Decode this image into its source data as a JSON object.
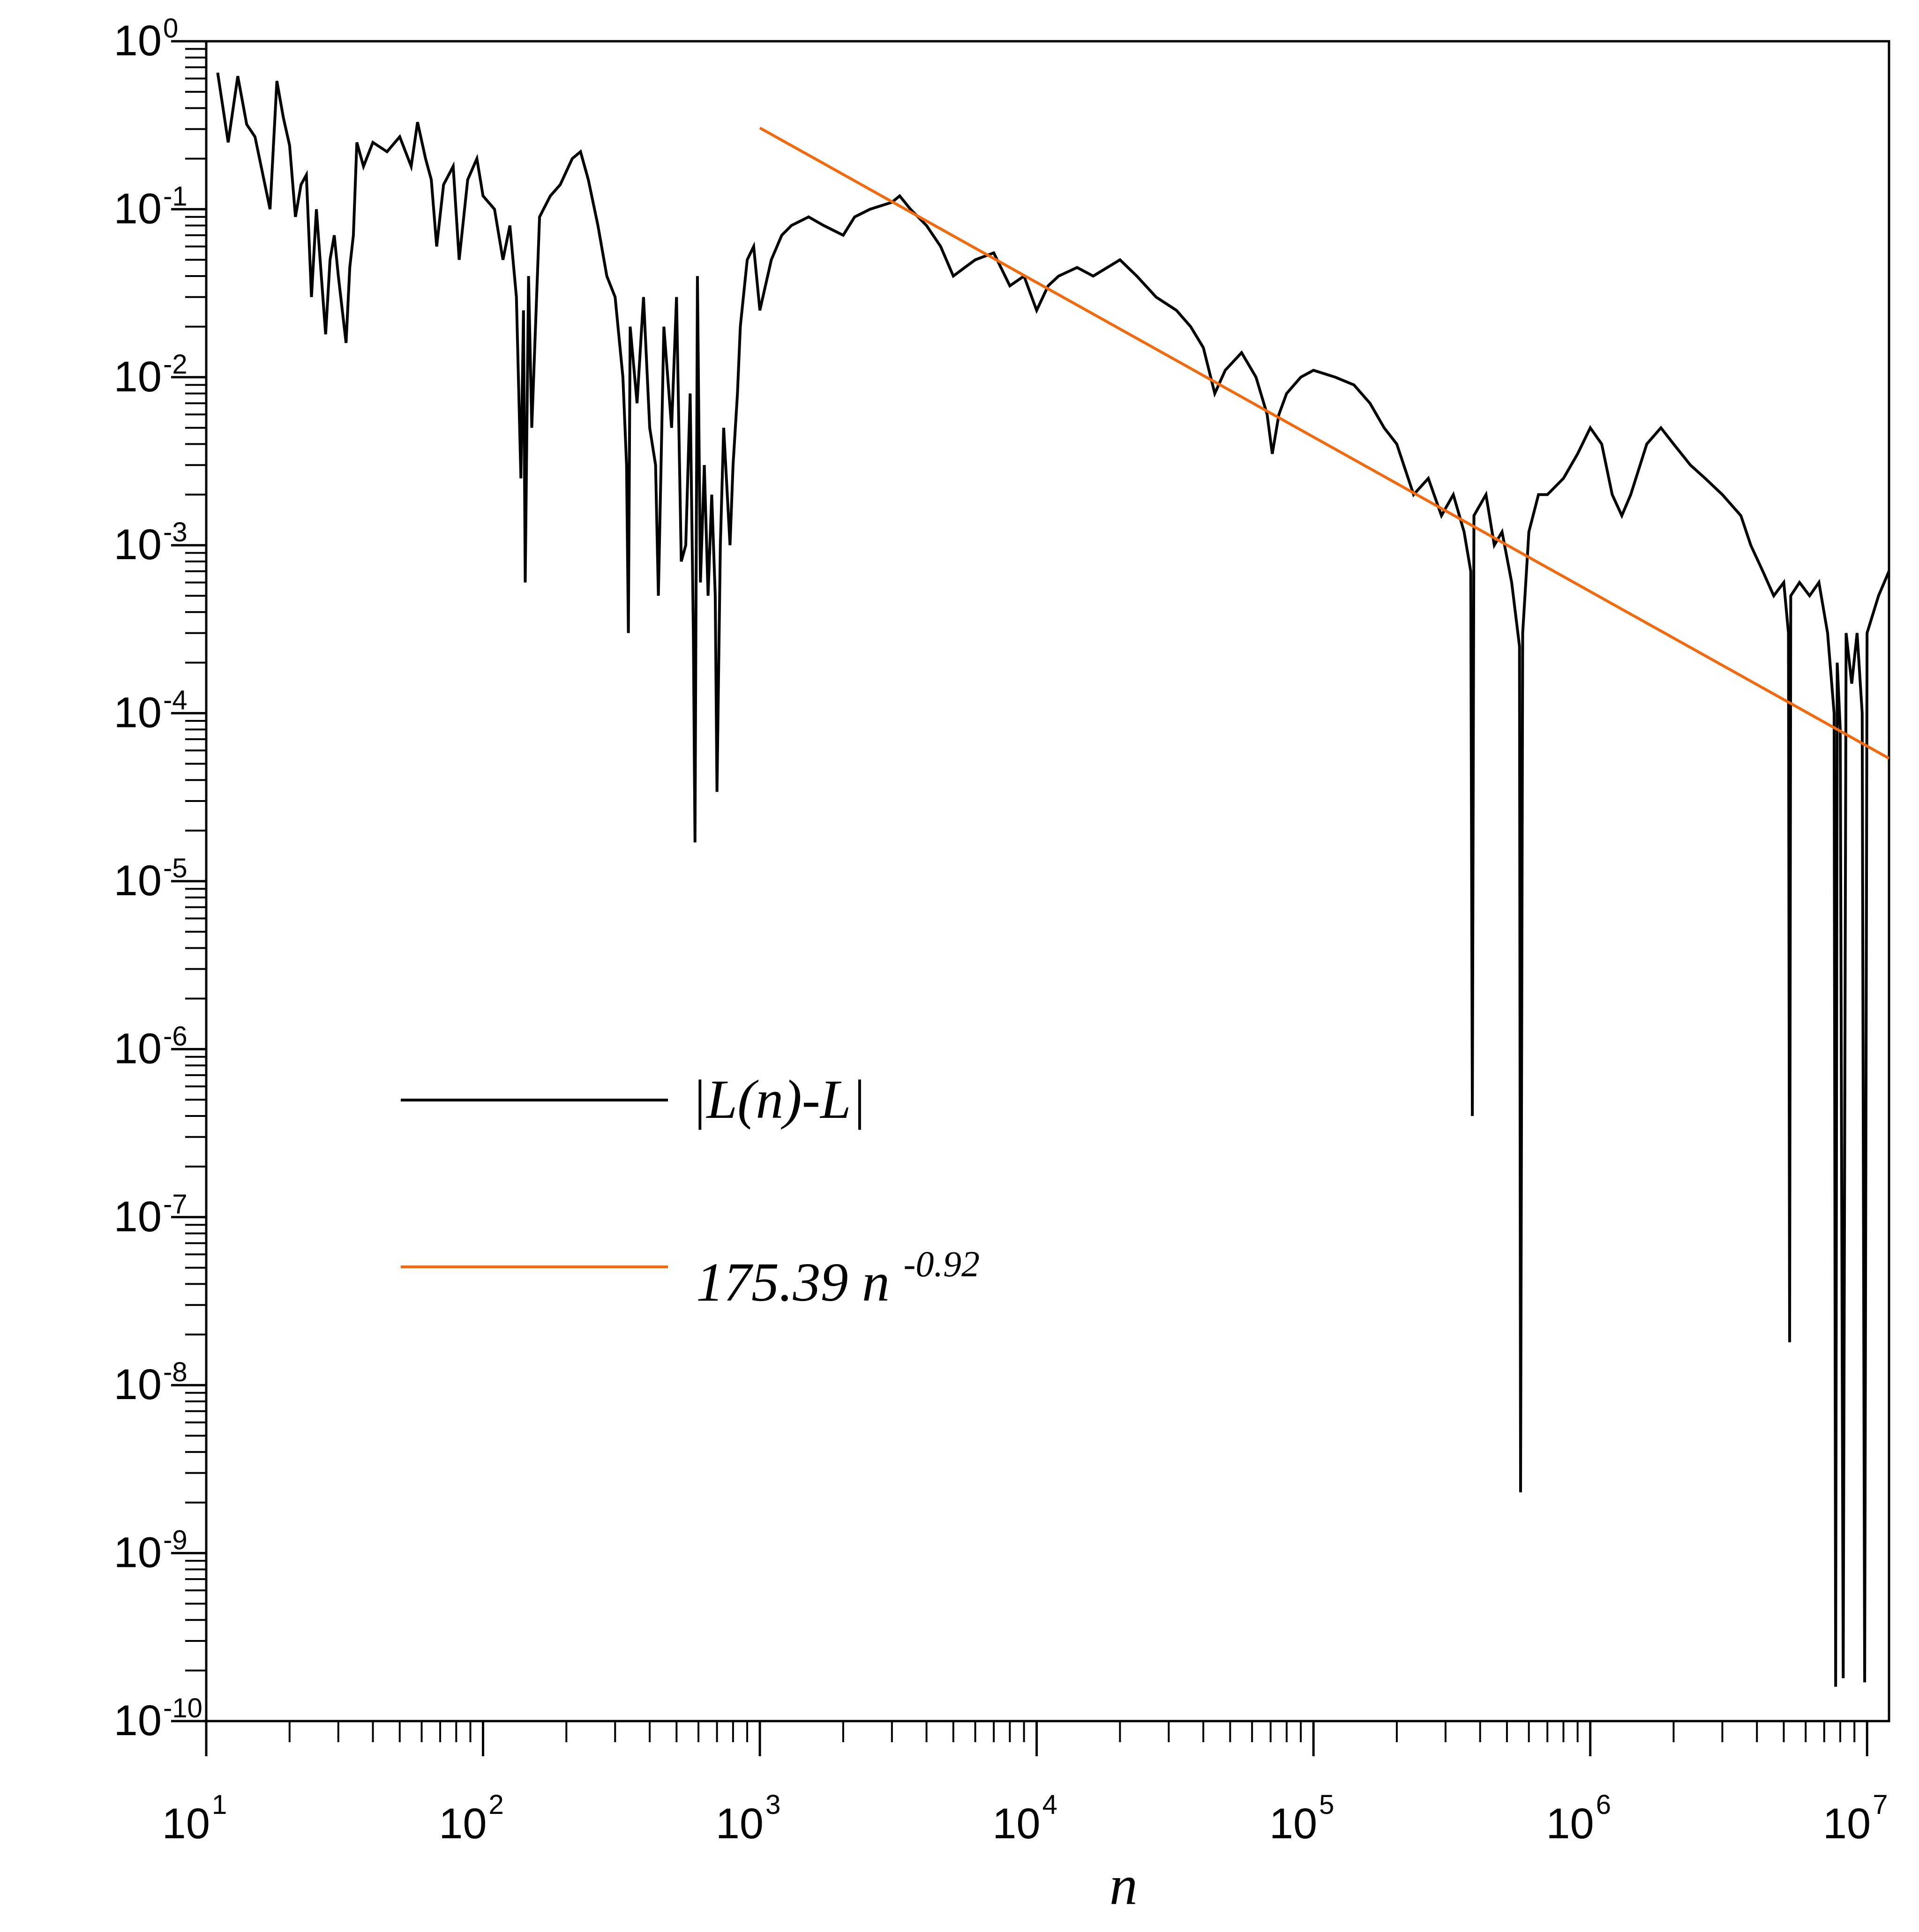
{
  "chart_data": {
    "type": "line",
    "title": "",
    "xlabel": "n",
    "ylabel": "",
    "x_scale": "log",
    "y_scale": "log",
    "xlim": [
      10,
      12000000
    ],
    "ylim": [
      1e-10,
      1
    ],
    "x_ticks": [
      {
        "base": "10",
        "exp": "1",
        "value": 10
      },
      {
        "base": "10",
        "exp": "2",
        "value": 100
      },
      {
        "base": "10",
        "exp": "3",
        "value": 1000
      },
      {
        "base": "10",
        "exp": "4",
        "value": 10000
      },
      {
        "base": "10",
        "exp": "5",
        "value": 100000
      },
      {
        "base": "10",
        "exp": "6",
        "value": 1000000
      },
      {
        "base": "10",
        "exp": "7",
        "value": 10000000
      }
    ],
    "y_ticks": [
      {
        "base": "10",
        "exp": "0",
        "value": 1
      },
      {
        "base": "10",
        "exp": "-1",
        "value": 0.1
      },
      {
        "base": "10",
        "exp": "-2",
        "value": 0.01
      },
      {
        "base": "10",
        "exp": "-3",
        "value": 0.001
      },
      {
        "base": "10",
        "exp": "-4",
        "value": 0.0001
      },
      {
        "base": "10",
        "exp": "-5",
        "value": 1e-05
      },
      {
        "base": "10",
        "exp": "-6",
        "value": 1e-06
      },
      {
        "base": "10",
        "exp": "-7",
        "value": 1e-07
      },
      {
        "base": "10",
        "exp": "-8",
        "value": 1e-08
      },
      {
        "base": "10",
        "exp": "-9",
        "value": 1e-09
      },
      {
        "base": "10",
        "exp": "-10",
        "value": 1e-10
      }
    ],
    "legend": {
      "placement": "left-center",
      "entries": [
        {
          "label": "|L(n)-L|",
          "color": "#000000"
        },
        {
          "label_base": "175.39 n",
          "label_exp": "-0.92",
          "color": "#f26a10"
        }
      ]
    },
    "series": [
      {
        "name": "|L(n)-L|",
        "color": "#000000",
        "points": [
          [
            11,
            0.65
          ],
          [
            12,
            0.25
          ],
          [
            13,
            0.62
          ],
          [
            14,
            0.32
          ],
          [
            15,
            0.27
          ],
          [
            17,
            0.1
          ],
          [
            18,
            0.58
          ],
          [
            19,
            0.35
          ],
          [
            20,
            0.24
          ],
          [
            21,
            0.09
          ],
          [
            22,
            0.14
          ],
          [
            23,
            0.16
          ],
          [
            24,
            0.03
          ],
          [
            25,
            0.1
          ],
          [
            27,
            0.018
          ],
          [
            28,
            0.05
          ],
          [
            29,
            0.07
          ],
          [
            30,
            0.04
          ],
          [
            32,
            0.016
          ],
          [
            33,
            0.045
          ],
          [
            34,
            0.07
          ],
          [
            35,
            0.25
          ],
          [
            37,
            0.18
          ],
          [
            40,
            0.25
          ],
          [
            45,
            0.22
          ],
          [
            50,
            0.27
          ],
          [
            55,
            0.18
          ],
          [
            58,
            0.33
          ],
          [
            62,
            0.2
          ],
          [
            65,
            0.15
          ],
          [
            68,
            0.06
          ],
          [
            72,
            0.14
          ],
          [
            78,
            0.18
          ],
          [
            82,
            0.05
          ],
          [
            88,
            0.15
          ],
          [
            95,
            0.2
          ],
          [
            100,
            0.12
          ],
          [
            110,
            0.1
          ],
          [
            118,
            0.05
          ],
          [
            125,
            0.08
          ],
          [
            132,
            0.03
          ],
          [
            137,
            0.0025
          ],
          [
            140,
            0.025
          ],
          [
            142,
            0.0006
          ],
          [
            146,
            0.04
          ],
          [
            150,
            0.005
          ],
          [
            160,
            0.09
          ],
          [
            175,
            0.12
          ],
          [
            190,
            0.14
          ],
          [
            210,
            0.2
          ],
          [
            225,
            0.22
          ],
          [
            240,
            0.15
          ],
          [
            260,
            0.08
          ],
          [
            280,
            0.04
          ],
          [
            300,
            0.03
          ],
          [
            320,
            0.01
          ],
          [
            330,
            0.003
          ],
          [
            335,
            0.0003
          ],
          [
            340,
            0.02
          ],
          [
            360,
            0.007
          ],
          [
            380,
            0.03
          ],
          [
            400,
            0.005
          ],
          [
            420,
            0.003
          ],
          [
            430,
            0.0005
          ],
          [
            450,
            0.02
          ],
          [
            480,
            0.005
          ],
          [
            500,
            0.03
          ],
          [
            520,
            0.0008
          ],
          [
            540,
            0.001
          ],
          [
            560,
            0.008
          ],
          [
            575,
            0.0003
          ],
          [
            583,
            1.7e-05
          ],
          [
            595,
            0.04
          ],
          [
            610,
            0.0006
          ],
          [
            630,
            0.003
          ],
          [
            650,
            0.0005
          ],
          [
            670,
            0.002
          ],
          [
            690,
            0.0005
          ],
          [
            700,
            3.4e-05
          ],
          [
            720,
            0.001
          ],
          [
            740,
            0.005
          ],
          [
            780,
            0.001
          ],
          [
            800,
            0.003
          ],
          [
            830,
            0.008
          ],
          [
            850,
            0.02
          ],
          [
            900,
            0.05
          ],
          [
            950,
            0.06
          ],
          [
            1000,
            0.025
          ],
          [
            1100,
            0.05
          ],
          [
            1200,
            0.07
          ],
          [
            1300,
            0.08
          ],
          [
            1500,
            0.09
          ],
          [
            1700,
            0.08
          ],
          [
            2000,
            0.07
          ],
          [
            2200,
            0.09
          ],
          [
            2500,
            0.1
          ],
          [
            3000,
            0.11
          ],
          [
            3200,
            0.12
          ],
          [
            3500,
            0.1
          ],
          [
            4000,
            0.08
          ],
          [
            4500,
            0.06
          ],
          [
            5000,
            0.04
          ],
          [
            5500,
            0.045
          ],
          [
            6000,
            0.05
          ],
          [
            7000,
            0.055
          ],
          [
            8000,
            0.035
          ],
          [
            9000,
            0.04
          ],
          [
            10000,
            0.025
          ],
          [
            11000,
            0.035
          ],
          [
            12000,
            0.04
          ],
          [
            14000,
            0.045
          ],
          [
            16000,
            0.04
          ],
          [
            18000,
            0.045
          ],
          [
            20000,
            0.05
          ],
          [
            23000,
            0.04
          ],
          [
            27000,
            0.03
          ],
          [
            32000,
            0.025
          ],
          [
            36000,
            0.02
          ],
          [
            40000,
            0.015
          ],
          [
            44000,
            0.008
          ],
          [
            48000,
            0.011
          ],
          [
            55000,
            0.014
          ],
          [
            62000,
            0.01
          ],
          [
            68000,
            0.006
          ],
          [
            71000,
            0.0035
          ],
          [
            75000,
            0.006
          ],
          [
            80000,
            0.008
          ],
          [
            90000,
            0.01
          ],
          [
            100000,
            0.011
          ],
          [
            120000,
            0.01
          ],
          [
            140000,
            0.009
          ],
          [
            160000,
            0.007
          ],
          [
            180000,
            0.005
          ],
          [
            200000,
            0.004
          ],
          [
            230000,
            0.002
          ],
          [
            260000,
            0.0025
          ],
          [
            290000,
            0.0015
          ],
          [
            320000,
            0.002
          ],
          [
            350000,
            0.0012
          ],
          [
            370000,
            0.0007
          ],
          [
            375000,
            4e-07
          ],
          [
            380000,
            0.0015
          ],
          [
            420000,
            0.002
          ],
          [
            450000,
            0.001
          ],
          [
            480000,
            0.0012
          ],
          [
            520000,
            0.0006
          ],
          [
            555000,
            0.00025
          ],
          [
            560000,
            2.3e-09
          ],
          [
            570000,
            0.0003
          ],
          [
            600000,
            0.0012
          ],
          [
            650000,
            0.002
          ],
          [
            700000,
            0.002
          ],
          [
            800000,
            0.0025
          ],
          [
            900000,
            0.0035
          ],
          [
            1000000,
            0.005
          ],
          [
            1100000,
            0.004
          ],
          [
            1200000,
            0.002
          ],
          [
            1300000,
            0.0015
          ],
          [
            1400000,
            0.002
          ],
          [
            1600000,
            0.004
          ],
          [
            1800000,
            0.005
          ],
          [
            2000000,
            0.004
          ],
          [
            2300000,
            0.003
          ],
          [
            2600000,
            0.0025
          ],
          [
            3000000,
            0.002
          ],
          [
            3500000,
            0.0015
          ],
          [
            3800000,
            0.001
          ],
          [
            4200000,
            0.0007
          ],
          [
            4600000,
            0.0005
          ],
          [
            5000000,
            0.0006
          ],
          [
            5200000,
            0.0003
          ],
          [
            5250000,
            1.8e-08
          ],
          [
            5300000,
            0.0005
          ],
          [
            5700000,
            0.0006
          ],
          [
            6200000,
            0.0005
          ],
          [
            6700000,
            0.0006
          ],
          [
            7200000,
            0.0003
          ],
          [
            7600000,
            0.0001
          ],
          [
            7700000,
            1.6e-10
          ],
          [
            7800000,
            0.0002
          ],
          [
            8000000,
            8e-05
          ],
          [
            8200000,
            1.8e-10
          ],
          [
            8400000,
            0.0003
          ],
          [
            8800000,
            0.00015
          ],
          [
            9200000,
            0.0003
          ],
          [
            9600000,
            0.0001
          ],
          [
            9800000,
            1.7e-10
          ],
          [
            10000000,
            0.0003
          ],
          [
            11000000,
            0.0005
          ],
          [
            12000000,
            0.0007
          ]
        ]
      },
      {
        "name": "175.39 n^-0.92",
        "color": "#f26a10",
        "fit": {
          "coefficient": 175.39,
          "exponent": -0.92
        },
        "x_range": [
          1000,
          12000000
        ]
      }
    ]
  }
}
